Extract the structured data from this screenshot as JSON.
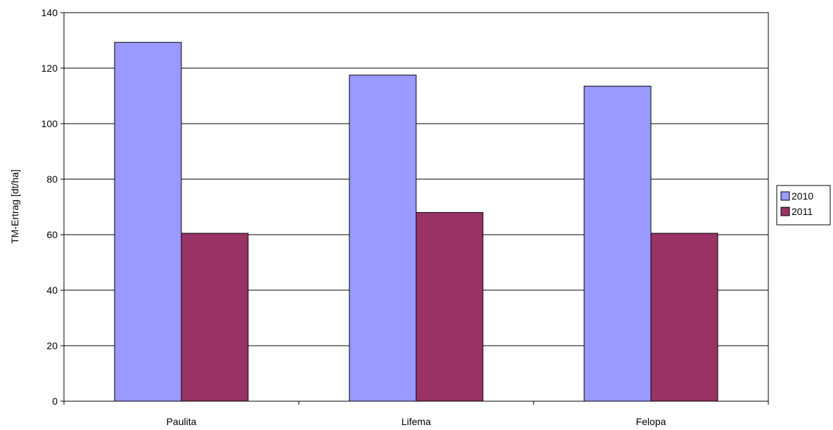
{
  "chart_data": {
    "type": "bar",
    "title": "",
    "xlabel": "",
    "ylabel": "TM-Ertrag [dt/ha]",
    "categories": [
      "Paulita",
      "Lifema",
      "Felopa"
    ],
    "series": [
      {
        "name": "2010",
        "color": "#9999ff",
        "values": [
          129.3,
          117.5,
          113.5
        ]
      },
      {
        "name": "2011",
        "color": "#993366",
        "values": [
          60.5,
          68.0,
          60.5
        ]
      }
    ],
    "ylim": [
      0,
      140
    ],
    "yticks": [
      "0",
      "20",
      "40",
      "60",
      "80",
      "100",
      "120",
      "140"
    ],
    "grid": true,
    "legend_position": "right"
  }
}
